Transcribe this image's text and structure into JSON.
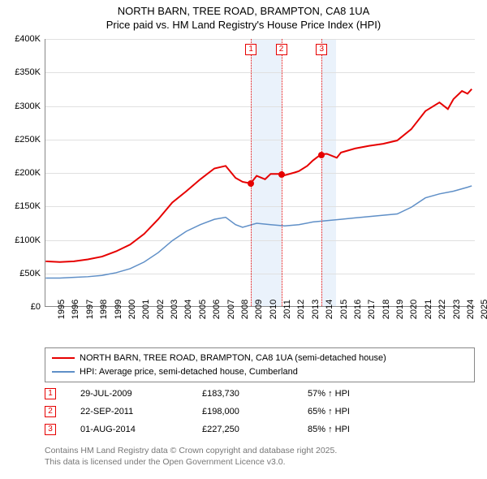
{
  "title_line1": "NORTH BARN, TREE ROAD, BRAMPTON, CA8 1UA",
  "title_line2": "Price paid vs. HM Land Registry's House Price Index (HPI)",
  "chart": {
    "type": "line",
    "xlim": [
      1995,
      2025.5
    ],
    "ylim": [
      0,
      400000
    ],
    "ytick_step": 50000,
    "y_ticks": [
      "£0",
      "£50K",
      "£100K",
      "£150K",
      "£200K",
      "£250K",
      "£300K",
      "£350K",
      "£400K"
    ],
    "x_ticks": [
      1995,
      1996,
      1997,
      1998,
      1999,
      2000,
      2001,
      2002,
      2003,
      2004,
      2005,
      2006,
      2007,
      2008,
      2009,
      2010,
      2011,
      2012,
      2013,
      2014,
      2015,
      2016,
      2017,
      2018,
      2019,
      2020,
      2021,
      2022,
      2023,
      2024,
      2025
    ],
    "background_color": "#ffffff",
    "grid_color": "#e0e0e0",
    "shaded_bands": [
      {
        "from": 2009.57,
        "to": 2011.72,
        "color": "#eaf2fb"
      },
      {
        "from": 2014.58,
        "to": 2015.6,
        "color": "#eaf2fb"
      }
    ],
    "series": [
      {
        "name": "subject",
        "label": "NORTH BARN, TREE ROAD, BRAMPTON, CA8 1UA (semi-detached house)",
        "color": "#e60000",
        "line_width": 2,
        "data": [
          [
            1995,
            67000
          ],
          [
            1996,
            66000
          ],
          [
            1997,
            67000
          ],
          [
            1998,
            70000
          ],
          [
            1999,
            74000
          ],
          [
            2000,
            82000
          ],
          [
            2001,
            92000
          ],
          [
            2002,
            108000
          ],
          [
            2003,
            130000
          ],
          [
            2004,
            155000
          ],
          [
            2005,
            172000
          ],
          [
            2006,
            190000
          ],
          [
            2007,
            206000
          ],
          [
            2007.8,
            210000
          ],
          [
            2008.5,
            192000
          ],
          [
            2009,
            186000
          ],
          [
            2009.57,
            183730
          ],
          [
            2010,
            195000
          ],
          [
            2010.6,
            190000
          ],
          [
            2011,
            198000
          ],
          [
            2011.72,
            198000
          ],
          [
            2012,
            196000
          ],
          [
            2012.7,
            200000
          ],
          [
            2013,
            202000
          ],
          [
            2013.6,
            210000
          ],
          [
            2014,
            218000
          ],
          [
            2014.58,
            227250
          ],
          [
            2015,
            228000
          ],
          [
            2015.7,
            222000
          ],
          [
            2016,
            230000
          ],
          [
            2017,
            236000
          ],
          [
            2018,
            240000
          ],
          [
            2019,
            243000
          ],
          [
            2020,
            248000
          ],
          [
            2021,
            265000
          ],
          [
            2022,
            292000
          ],
          [
            2023,
            305000
          ],
          [
            2023.6,
            295000
          ],
          [
            2024,
            310000
          ],
          [
            2024.6,
            322000
          ],
          [
            2025,
            318000
          ],
          [
            2025.3,
            325000
          ]
        ]
      },
      {
        "name": "hpi",
        "label": "HPI: Average price, semi-detached house, Cumberland",
        "color": "#5f8fc7",
        "line_width": 1.5,
        "data": [
          [
            1995,
            42000
          ],
          [
            1996,
            42000
          ],
          [
            1997,
            43000
          ],
          [
            1998,
            44000
          ],
          [
            1999,
            46000
          ],
          [
            2000,
            50000
          ],
          [
            2001,
            56000
          ],
          [
            2002,
            66000
          ],
          [
            2003,
            80000
          ],
          [
            2004,
            98000
          ],
          [
            2005,
            112000
          ],
          [
            2006,
            122000
          ],
          [
            2007,
            130000
          ],
          [
            2007.8,
            133000
          ],
          [
            2008.5,
            122000
          ],
          [
            2009,
            118000
          ],
          [
            2010,
            124000
          ],
          [
            2011,
            122000
          ],
          [
            2012,
            120000
          ],
          [
            2013,
            122000
          ],
          [
            2014,
            126000
          ],
          [
            2015,
            128000
          ],
          [
            2016,
            130000
          ],
          [
            2017,
            132000
          ],
          [
            2018,
            134000
          ],
          [
            2019,
            136000
          ],
          [
            2020,
            138000
          ],
          [
            2021,
            148000
          ],
          [
            2022,
            162000
          ],
          [
            2023,
            168000
          ],
          [
            2024,
            172000
          ],
          [
            2025,
            178000
          ],
          [
            2025.3,
            180000
          ]
        ]
      }
    ],
    "sale_markers": [
      {
        "n": "1",
        "x": 2009.57,
        "y": 183730,
        "color": "#e60000"
      },
      {
        "n": "2",
        "x": 2011.72,
        "y": 198000,
        "color": "#e60000"
      },
      {
        "n": "3",
        "x": 2014.58,
        "y": 227250,
        "color": "#e60000"
      }
    ]
  },
  "legend": {
    "rows": [
      {
        "color": "#e60000",
        "label": "NORTH BARN, TREE ROAD, BRAMPTON, CA8 1UA (semi-detached house)"
      },
      {
        "color": "#5f8fc7",
        "label": "HPI: Average price, semi-detached house, Cumberland"
      }
    ]
  },
  "sales_table": {
    "rows": [
      {
        "n": "1",
        "color": "#e60000",
        "date": "29-JUL-2009",
        "price": "£183,730",
        "hpi": "57% ↑ HPI"
      },
      {
        "n": "2",
        "color": "#e60000",
        "date": "22-SEP-2011",
        "price": "£198,000",
        "hpi": "65% ↑ HPI"
      },
      {
        "n": "3",
        "color": "#e60000",
        "date": "01-AUG-2014",
        "price": "£227,250",
        "hpi": "85% ↑ HPI"
      }
    ]
  },
  "footer_line1": "Contains HM Land Registry data © Crown copyright and database right 2025.",
  "footer_line2": "This data is licensed under the Open Government Licence v3.0."
}
